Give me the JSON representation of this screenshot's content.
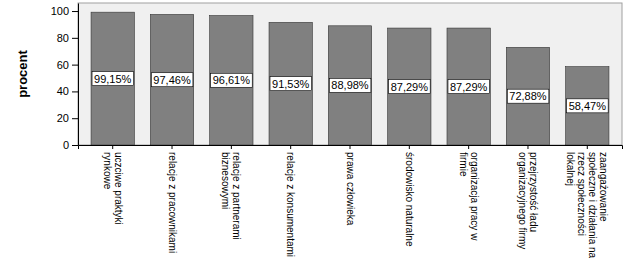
{
  "chart_data": {
    "type": "bar",
    "y_label": "procent",
    "categories": [
      "uczciwe praktyki rynkowe",
      "relacje z pracownikami",
      "relacje z partnerami biznesowymi",
      "relacje z konsumentami",
      "prawa człowieka",
      "środowisko naturalne",
      "organizacja pracy w firmie",
      "przejrzystość ładu organizacyjnego firmy",
      "zaangażowanie społeczne i działania na rzecz społeczności lokalnej"
    ],
    "values": [
      99.15,
      97.46,
      96.61,
      91.53,
      88.98,
      87.29,
      87.29,
      72.88,
      58.47
    ],
    "value_labels": [
      "99,15%",
      "97,46%",
      "96,61%",
      "91,53%",
      "88,98%",
      "87,29%",
      "87,29%",
      "72,88%",
      "58,47%"
    ],
    "color": "#808080",
    "ylim": [
      0,
      106
    ],
    "yticks": [
      0,
      20,
      40,
      60,
      80,
      100
    ],
    "grid": false,
    "data_labels": true
  }
}
